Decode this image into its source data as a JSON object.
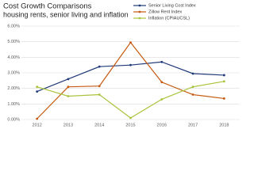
{
  "chart_data": {
    "type": "line",
    "title": "Cost Growth Comparisons",
    "subtitle": "housing rents, senior living and inflation",
    "categories": [
      "2012",
      "2013",
      "2014",
      "2015",
      "2016",
      "2017",
      "2018"
    ],
    "series": [
      {
        "name": "Senior Living Cost Index",
        "color": "#1f3a78",
        "values": [
          1.8,
          2.6,
          3.4,
          3.5,
          3.7,
          2.95,
          2.85
        ]
      },
      {
        "name": "Zillow Rent Index",
        "color": "#c55a11",
        "values": [
          0.05,
          2.1,
          2.15,
          4.95,
          2.4,
          1.6,
          1.35
        ]
      },
      {
        "name": "Inflation (CPIAUCSL)",
        "color": "#a9c43c",
        "values": [
          2.1,
          1.5,
          1.6,
          0.1,
          1.3,
          2.1,
          2.45
        ]
      }
    ],
    "ylim": [
      0,
      6
    ],
    "yticks": [
      {
        "value": 0,
        "label": "0.00%"
      },
      {
        "value": 1,
        "label": "1.00%"
      },
      {
        "value": 2,
        "label": "2.00%"
      },
      {
        "value": 3,
        "label": "3.00%"
      },
      {
        "value": 4,
        "label": "4.00%"
      },
      {
        "value": 5,
        "label": "5.00%"
      },
      {
        "value": 6,
        "label": "6.00%"
      }
    ],
    "grid": true,
    "legend": "top-right"
  }
}
